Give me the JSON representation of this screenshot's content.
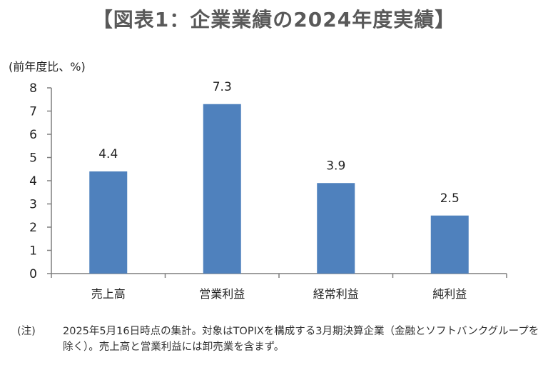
{
  "chart_data": {
    "type": "bar",
    "title": "【図表1：企業業績の2024年度実績】",
    "ylabel": "(前年度比、%)",
    "xlabel": "",
    "categories": [
      "売上高",
      "営業利益",
      "経常利益",
      "純利益"
    ],
    "values": [
      4.4,
      7.3,
      3.9,
      2.5
    ],
    "value_labels": [
      "4.4",
      "7.3",
      "3.9",
      "2.5"
    ],
    "ylim": [
      0,
      8
    ],
    "yticks": [
      0,
      1,
      2,
      3,
      4,
      5,
      6,
      7,
      8
    ],
    "grid": false,
    "bar_color": "#4f81bd",
    "axis_color": "#7f7f7f"
  },
  "note": {
    "marker": "(注)",
    "text": "2025年5月16日時点の集計。対象はTOPIXを構成する3月期決算企業（金融とソフトバンクグループを除く）。売上高と営業利益には卸売業を含まず。"
  }
}
